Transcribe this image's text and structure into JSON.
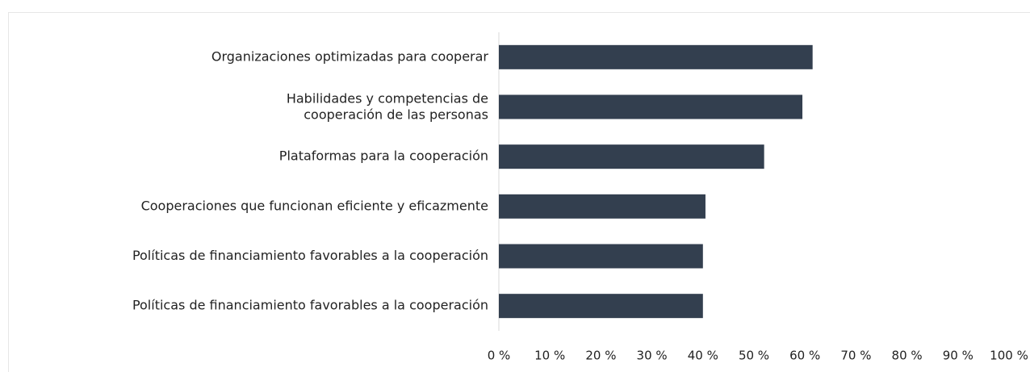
{
  "chart_data": {
    "type": "bar",
    "orientation": "horizontal",
    "categories": [
      "Organizaciones optimizadas para cooperar",
      "Habilidades y competencias de\ncooperación de las personas",
      "Plataformas para la cooperación",
      "Cooperaciones que funcionan eficiente y eficazmente",
      "Políticas de financiamiento favorables a la cooperación",
      "Políticas de financiamiento favorables a la cooperación"
    ],
    "values": [
      61.5,
      59.5,
      52,
      40.5,
      40,
      40
    ],
    "color": "#333f4f",
    "xlim": [
      0,
      100
    ],
    "xticks": [
      {
        "value": 0,
        "label": "0 %"
      },
      {
        "value": 10,
        "label": "10 %"
      },
      {
        "value": 20,
        "label": "20 %"
      },
      {
        "value": 30,
        "label": "30 %"
      },
      {
        "value": 40,
        "label": "40 %"
      },
      {
        "value": 50,
        "label": "50 %"
      },
      {
        "value": 60,
        "label": "60 %"
      },
      {
        "value": 70,
        "label": "70 %"
      },
      {
        "value": 80,
        "label": "80 %"
      },
      {
        "value": 90,
        "label": "90 %"
      },
      {
        "value": 100,
        "label": "100 %"
      }
    ],
    "grid": false
  }
}
